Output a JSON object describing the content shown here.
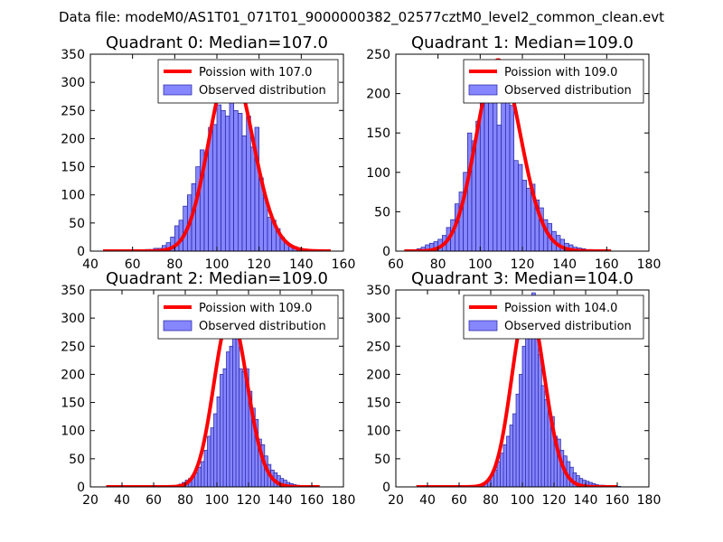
{
  "page": {
    "suptitle": "Data file: modeM0/AS1T01_071T01_9000000382_02577cztM0_level2_common_clean.evt"
  },
  "colors": {
    "poisson": "#ff0000",
    "bar_fill": "#8080ff",
    "bar_edge": "#2020a0",
    "legend_edge": "#000000"
  },
  "chart_data": [
    {
      "type": "bar",
      "title": "Quadrant 0: Median=107.0",
      "xlim": [
        40,
        160
      ],
      "ylim": [
        0,
        350
      ],
      "xticks": [
        40,
        60,
        80,
        100,
        120,
        140,
        160
      ],
      "yticks": [
        0,
        50,
        100,
        150,
        200,
        250,
        300,
        350
      ],
      "legend": [
        "Poission with 107.0",
        "Observed distribution"
      ],
      "bin_width": 2,
      "observed": {
        "x": [
          58,
          60,
          62,
          64,
          66,
          68,
          70,
          72,
          74,
          76,
          78,
          80,
          82,
          84,
          86,
          88,
          90,
          92,
          94,
          96,
          98,
          100,
          102,
          104,
          106,
          108,
          110,
          112,
          114,
          116,
          118,
          120,
          122,
          124,
          126,
          128,
          130,
          132,
          134,
          136,
          138,
          140,
          142
        ],
        "counts": [
          1,
          1,
          2,
          2,
          3,
          3,
          5,
          5,
          10,
          15,
          25,
          45,
          55,
          80,
          100,
          120,
          150,
          180,
          175,
          220,
          225,
          260,
          250,
          240,
          300,
          250,
          245,
          205,
          240,
          185,
          220,
          130,
          95,
          60,
          55,
          40,
          25,
          15,
          10,
          8,
          5,
          4,
          3
        ]
      },
      "poisson": {
        "mean": 107.0,
        "x_range": [
          46,
          154
        ]
      }
    },
    {
      "type": "bar",
      "title": "Quadrant 1: Median=109.0",
      "xlim": [
        60,
        180
      ],
      "ylim": [
        0,
        250
      ],
      "xticks": [
        60,
        80,
        100,
        120,
        140,
        160,
        180
      ],
      "yticks": [
        0,
        50,
        100,
        150,
        200,
        250
      ],
      "legend": [
        "Poission with 109.0",
        "Observed distribution"
      ],
      "bin_width": 2,
      "observed": {
        "x": [
          70,
          72,
          74,
          76,
          78,
          80,
          82,
          84,
          86,
          88,
          90,
          92,
          94,
          96,
          98,
          100,
          102,
          104,
          106,
          108,
          110,
          112,
          114,
          116,
          118,
          120,
          122,
          124,
          126,
          128,
          130,
          132,
          134,
          136,
          138,
          140,
          142,
          144,
          146,
          148,
          150,
          152,
          154,
          156,
          158,
          160
        ],
        "counts": [
          3,
          5,
          8,
          10,
          12,
          15,
          20,
          30,
          40,
          60,
          75,
          100,
          150,
          140,
          165,
          205,
          200,
          205,
          225,
          160,
          195,
          195,
          185,
          115,
          110,
          90,
          80,
          85,
          65,
          55,
          40,
          35,
          25,
          20,
          15,
          10,
          8,
          5,
          4,
          3,
          2,
          2,
          1,
          1,
          1,
          1
        ]
      },
      "poisson": {
        "mean": 109.0,
        "x_range": [
          64,
          162
        ]
      }
    },
    {
      "type": "bar",
      "title": "Quadrant 2: Median=109.0",
      "xlim": [
        20,
        180
      ],
      "ylim": [
        0,
        350
      ],
      "xticks": [
        20,
        40,
        60,
        80,
        100,
        120,
        140,
        160,
        180
      ],
      "yticks": [
        0,
        50,
        100,
        150,
        200,
        250,
        300,
        350
      ],
      "legend": [
        "Poission with 109.0",
        "Observed distribution"
      ],
      "bin_width": 2.2,
      "observed": {
        "x": [
          74,
          76,
          78,
          80,
          82,
          84,
          86,
          88,
          90,
          92,
          94,
          96,
          98,
          100,
          102,
          104,
          106,
          108,
          110,
          112,
          114,
          116,
          118,
          120,
          122,
          124,
          126,
          128,
          130,
          132,
          134,
          136,
          138,
          140,
          142,
          144,
          146,
          148,
          150,
          152,
          154,
          156,
          158,
          160
        ],
        "counts": [
          2,
          5,
          8,
          12,
          15,
          20,
          25,
          35,
          45,
          65,
          90,
          105,
          130,
          160,
          200,
          210,
          240,
          250,
          300,
          290,
          210,
          205,
          210,
          170,
          140,
          120,
          85,
          75,
          55,
          40,
          30,
          25,
          20,
          15,
          12,
          8,
          6,
          4,
          3,
          2,
          2,
          1,
          1,
          1
        ]
      },
      "poisson": {
        "mean": 109.0,
        "x_range": [
          30,
          165
        ]
      }
    },
    {
      "type": "bar",
      "title": "Quadrant 3: Median=104.0",
      "xlim": [
        20,
        180
      ],
      "ylim": [
        0,
        350
      ],
      "xticks": [
        20,
        40,
        60,
        80,
        100,
        120,
        140,
        160,
        180
      ],
      "yticks": [
        0,
        50,
        100,
        150,
        200,
        250,
        300,
        350
      ],
      "legend": [
        "Poission with 104.0",
        "Observed distribution"
      ],
      "bin_width": 2.2,
      "observed": {
        "x": [
          68,
          70,
          72,
          74,
          76,
          78,
          80,
          82,
          84,
          86,
          88,
          90,
          92,
          94,
          96,
          98,
          100,
          102,
          104,
          106,
          108,
          110,
          112,
          114,
          116,
          118,
          120,
          122,
          124,
          126,
          128,
          130,
          132,
          134,
          136,
          138,
          140,
          142,
          144,
          146,
          148,
          150,
          152,
          154,
          156,
          158,
          160
        ],
        "counts": [
          2,
          3,
          4,
          6,
          8,
          12,
          20,
          30,
          45,
          60,
          75,
          90,
          110,
          130,
          165,
          200,
          250,
          300,
          340,
          345,
          300,
          235,
          180,
          155,
          130,
          125,
          90,
          85,
          65,
          55,
          45,
          35,
          25,
          20,
          15,
          12,
          10,
          8,
          6,
          4,
          3,
          3,
          2,
          2,
          1,
          1,
          1
        ]
      },
      "poisson": {
        "mean": 104.0,
        "x_range": [
          33,
          160
        ]
      }
    }
  ]
}
